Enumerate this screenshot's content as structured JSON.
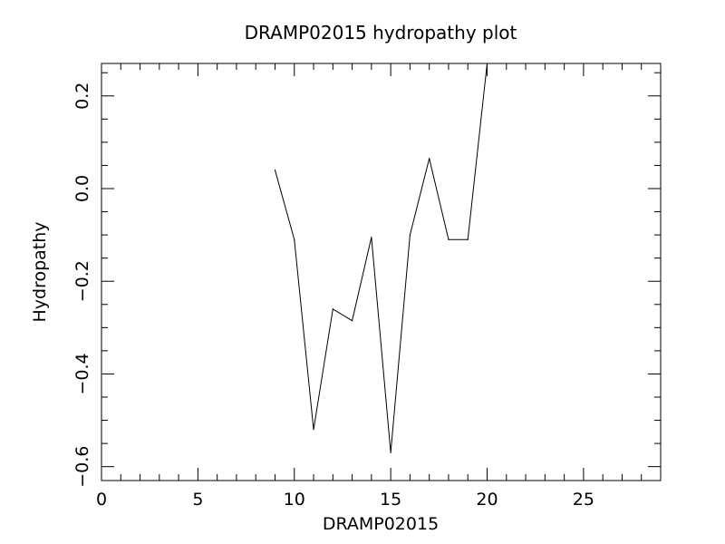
{
  "chart_data": {
    "type": "line",
    "title": "DRAMP02015 hydropathy plot",
    "xlabel": "DRAMP02015",
    "ylabel": "Hydropathy",
    "xlim": [
      0,
      29
    ],
    "ylim": [
      -0.63,
      0.27
    ],
    "x_ticks": [
      0,
      5,
      10,
      15,
      20,
      25
    ],
    "y_ticks": [
      -0.6,
      -0.4,
      -0.2,
      0.0,
      0.2
    ],
    "x_tick_labels": [
      "0",
      "5",
      "10",
      "15",
      "20",
      "25"
    ],
    "y_tick_labels": [
      "−0.6",
      "−0.4",
      "−0.2",
      "0.0",
      "0.2"
    ],
    "grid": false,
    "series": [
      {
        "x": [
          9,
          10,
          11,
          12,
          13,
          14,
          15,
          16,
          17,
          18,
          19,
          20
        ],
        "y": [
          0.04,
          -0.11,
          -0.52,
          -0.26,
          -0.285,
          -0.105,
          -0.57,
          -0.1,
          0.065,
          -0.11,
          -0.11,
          0.27
        ]
      }
    ],
    "line_color": "#000000"
  }
}
